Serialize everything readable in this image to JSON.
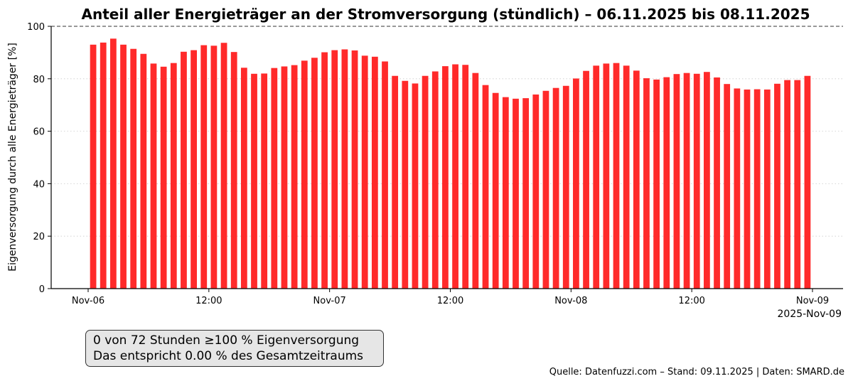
{
  "chart_data": {
    "type": "bar",
    "title": "Anteil aller Energieträger an der Stromversorgung (stündlich) – 06.11.2025 bis 08.11.2025",
    "ylabel": "Eigenversorgung durch alle Energieträger [%]",
    "xlabel": "",
    "x_offset_label": "2025-Nov-09",
    "ylim": [
      0,
      100
    ],
    "yticks": [
      0,
      20,
      40,
      60,
      80,
      100
    ],
    "x_start": "2025-11-06T00:00",
    "x_end": "2025-11-09T00:00",
    "xticks": [
      {
        "label": "Nov-06",
        "time": "2025-11-06T00:00"
      },
      {
        "label": "12:00",
        "time": "2025-11-06T12:00"
      },
      {
        "label": "Nov-07",
        "time": "2025-11-07T00:00"
      },
      {
        "label": "12:00",
        "time": "2025-11-07T12:00"
      },
      {
        "label": "Nov-08",
        "time": "2025-11-08T00:00"
      },
      {
        "label": "12:00",
        "time": "2025-11-08T12:00"
      },
      {
        "label": "Nov-09",
        "time": "2025-11-09T00:00"
      }
    ],
    "reference_line": {
      "y": 100,
      "style": "dashed"
    },
    "grid": "horizontal dotted",
    "bar_color": "#ff2a2a",
    "series": [
      {
        "values": [
          93.0,
          93.8,
          95.3,
          93.0,
          91.4,
          89.5,
          85.8,
          84.6,
          86.0,
          90.3,
          90.9,
          92.8,
          92.6,
          93.7,
          90.2,
          84.2,
          81.9,
          82.0,
          84.1,
          84.7,
          85.2,
          86.9,
          88.0,
          90.1,
          90.9,
          91.2,
          90.8,
          88.8,
          88.4,
          86.6,
          81.1,
          79.2,
          78.2,
          81.1,
          82.8,
          84.8,
          85.5,
          85.3,
          82.2,
          77.6,
          74.6,
          73.0,
          72.4,
          72.6,
          74.0,
          75.4,
          76.5,
          77.3,
          80.1,
          83.0,
          85.0,
          85.8,
          86.0,
          85.0,
          83.1,
          80.2,
          79.7,
          80.6,
          81.8,
          82.2,
          81.9,
          82.6,
          80.5,
          78.0,
          76.3,
          75.9,
          76.0,
          75.9,
          78.1,
          79.5,
          79.5,
          81.1
        ]
      }
    ]
  },
  "summary": {
    "line1": "0 von 72 Stunden ≥100 % Eigenversorgung",
    "line2": "Das entspricht 0.00 % des Gesamtzeitraums"
  },
  "source_text": "Quelle: Datenfuzzi.com – Stand: 09.11.2025 | Daten: SMARD.de"
}
